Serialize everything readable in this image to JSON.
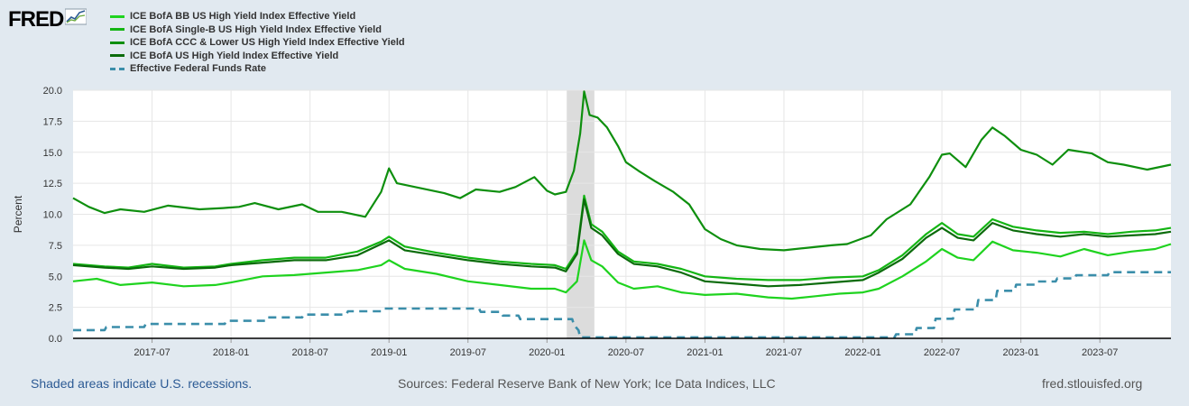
{
  "logo": {
    "text": "FRED"
  },
  "legend": [
    {
      "label": "ICE BofA BB US High Yield Index Effective Yield",
      "color": "#1fd31f",
      "style": "solid"
    },
    {
      "label": "ICE BofA Single-B US High Yield Index Effective Yield",
      "color": "#14b514",
      "style": "solid"
    },
    {
      "label": "ICE BofA CCC & Lower US High Yield Index Effective Yield",
      "color": "#0e8f0e",
      "style": "solid"
    },
    {
      "label": "ICE BofA US High Yield Index Effective Yield",
      "color": "#0b6b0b",
      "style": "solid"
    },
    {
      "label": "Effective Federal Funds Rate",
      "color": "#3b8eaa",
      "style": "dashed"
    }
  ],
  "footer": {
    "recessions": "Shaded areas indicate U.S. recessions.",
    "sources": "Sources: Federal Reserve Bank of New York; Ice Data Indices, LLC",
    "url": "fred.stlouisfed.org"
  },
  "chart_data": {
    "type": "line",
    "ylabel": "Percent",
    "xlabel": "",
    "ylim": [
      0,
      20
    ],
    "xlim": [
      2017.0,
      2023.95
    ],
    "yticks": [
      "0.0",
      "2.5",
      "5.0",
      "7.5",
      "10.0",
      "12.5",
      "15.0",
      "17.5",
      "20.0"
    ],
    "xticks": [
      {
        "label": "2017-07",
        "t": 2017.5
      },
      {
        "label": "2018-01",
        "t": 2018.0
      },
      {
        "label": "2018-07",
        "t": 2018.5
      },
      {
        "label": "2019-01",
        "t": 2019.0
      },
      {
        "label": "2019-07",
        "t": 2019.5
      },
      {
        "label": "2020-01",
        "t": 2020.0
      },
      {
        "label": "2020-07",
        "t": 2020.5
      },
      {
        "label": "2021-01",
        "t": 2021.0
      },
      {
        "label": "2021-07",
        "t": 2021.5
      },
      {
        "label": "2022-01",
        "t": 2022.0
      },
      {
        "label": "2022-07",
        "t": 2022.5
      },
      {
        "label": "2023-01",
        "t": 2023.0
      },
      {
        "label": "2023-07",
        "t": 2023.5
      }
    ],
    "grid": true,
    "recessions": [
      [
        2020.125,
        2020.3
      ]
    ],
    "series": [
      {
        "name": "ICE BofA CCC & Lower US High Yield Index Effective Yield",
        "color": "#0e8f0e",
        "dashed": false,
        "points": [
          [
            2017.0,
            11.3
          ],
          [
            2017.1,
            10.6
          ],
          [
            2017.2,
            10.1
          ],
          [
            2017.3,
            10.4
          ],
          [
            2017.45,
            10.2
          ],
          [
            2017.6,
            10.7
          ],
          [
            2017.8,
            10.4
          ],
          [
            2017.95,
            10.5
          ],
          [
            2018.05,
            10.6
          ],
          [
            2018.15,
            10.9
          ],
          [
            2018.3,
            10.4
          ],
          [
            2018.45,
            10.8
          ],
          [
            2018.55,
            10.2
          ],
          [
            2018.7,
            10.2
          ],
          [
            2018.85,
            9.8
          ],
          [
            2018.95,
            11.8
          ],
          [
            2019.0,
            13.7
          ],
          [
            2019.05,
            12.5
          ],
          [
            2019.2,
            12.1
          ],
          [
            2019.35,
            11.7
          ],
          [
            2019.45,
            11.3
          ],
          [
            2019.55,
            12.0
          ],
          [
            2019.7,
            11.8
          ],
          [
            2019.8,
            12.2
          ],
          [
            2019.92,
            13.0
          ],
          [
            2020.0,
            11.9
          ],
          [
            2020.05,
            11.6
          ],
          [
            2020.12,
            11.8
          ],
          [
            2020.17,
            13.5
          ],
          [
            2020.21,
            16.5
          ],
          [
            2020.235,
            19.9
          ],
          [
            2020.27,
            18.0
          ],
          [
            2020.32,
            17.8
          ],
          [
            2020.38,
            17.0
          ],
          [
            2020.45,
            15.5
          ],
          [
            2020.5,
            14.2
          ],
          [
            2020.58,
            13.5
          ],
          [
            2020.68,
            12.7
          ],
          [
            2020.8,
            11.8
          ],
          [
            2020.9,
            10.8
          ],
          [
            2021.0,
            8.8
          ],
          [
            2021.1,
            8.0
          ],
          [
            2021.2,
            7.5
          ],
          [
            2021.35,
            7.2
          ],
          [
            2021.5,
            7.1
          ],
          [
            2021.65,
            7.3
          ],
          [
            2021.8,
            7.5
          ],
          [
            2021.9,
            7.6
          ],
          [
            2022.05,
            8.3
          ],
          [
            2022.15,
            9.6
          ],
          [
            2022.3,
            10.8
          ],
          [
            2022.42,
            13.0
          ],
          [
            2022.5,
            14.8
          ],
          [
            2022.55,
            14.9
          ],
          [
            2022.65,
            13.8
          ],
          [
            2022.75,
            16.0
          ],
          [
            2022.82,
            17.0
          ],
          [
            2022.9,
            16.3
          ],
          [
            2023.0,
            15.2
          ],
          [
            2023.1,
            14.8
          ],
          [
            2023.2,
            14.0
          ],
          [
            2023.3,
            15.2
          ],
          [
            2023.45,
            14.9
          ],
          [
            2023.55,
            14.2
          ],
          [
            2023.65,
            14.0
          ],
          [
            2023.8,
            13.6
          ],
          [
            2023.95,
            14.0
          ]
        ]
      },
      {
        "name": "ICE BofA Single-B US High Yield Index Effective Yield",
        "color": "#14b514",
        "dashed": false,
        "points": [
          [
            2017.0,
            6.0
          ],
          [
            2017.2,
            5.8
          ],
          [
            2017.35,
            5.7
          ],
          [
            2017.5,
            6.0
          ],
          [
            2017.7,
            5.7
          ],
          [
            2017.9,
            5.8
          ],
          [
            2018.0,
            6.0
          ],
          [
            2018.2,
            6.3
          ],
          [
            2018.4,
            6.5
          ],
          [
            2018.6,
            6.5
          ],
          [
            2018.8,
            7.0
          ],
          [
            2018.95,
            7.8
          ],
          [
            2019.0,
            8.2
          ],
          [
            2019.1,
            7.4
          ],
          [
            2019.3,
            6.9
          ],
          [
            2019.5,
            6.5
          ],
          [
            2019.7,
            6.2
          ],
          [
            2019.9,
            6.0
          ],
          [
            2020.05,
            5.9
          ],
          [
            2020.12,
            5.6
          ],
          [
            2020.19,
            7.0
          ],
          [
            2020.235,
            11.5
          ],
          [
            2020.28,
            9.2
          ],
          [
            2020.35,
            8.6
          ],
          [
            2020.45,
            7.0
          ],
          [
            2020.55,
            6.2
          ],
          [
            2020.7,
            6.0
          ],
          [
            2020.85,
            5.6
          ],
          [
            2021.0,
            5.0
          ],
          [
            2021.2,
            4.8
          ],
          [
            2021.4,
            4.7
          ],
          [
            2021.6,
            4.7
          ],
          [
            2021.8,
            4.9
          ],
          [
            2022.0,
            5.0
          ],
          [
            2022.1,
            5.5
          ],
          [
            2022.25,
            6.7
          ],
          [
            2022.4,
            8.4
          ],
          [
            2022.5,
            9.3
          ],
          [
            2022.6,
            8.4
          ],
          [
            2022.7,
            8.2
          ],
          [
            2022.82,
            9.6
          ],
          [
            2022.95,
            9.0
          ],
          [
            2023.1,
            8.7
          ],
          [
            2023.25,
            8.5
          ],
          [
            2023.4,
            8.6
          ],
          [
            2023.55,
            8.4
          ],
          [
            2023.7,
            8.6
          ],
          [
            2023.85,
            8.7
          ],
          [
            2023.95,
            8.9
          ]
        ]
      },
      {
        "name": "ICE BofA US High Yield Index Effective Yield",
        "color": "#0b6b0b",
        "dashed": false,
        "points": [
          [
            2017.0,
            5.9
          ],
          [
            2017.2,
            5.7
          ],
          [
            2017.35,
            5.6
          ],
          [
            2017.5,
            5.8
          ],
          [
            2017.7,
            5.6
          ],
          [
            2017.9,
            5.7
          ],
          [
            2018.0,
            5.9
          ],
          [
            2018.2,
            6.1
          ],
          [
            2018.4,
            6.3
          ],
          [
            2018.6,
            6.3
          ],
          [
            2018.8,
            6.7
          ],
          [
            2018.95,
            7.6
          ],
          [
            2019.0,
            7.9
          ],
          [
            2019.1,
            7.1
          ],
          [
            2019.3,
            6.7
          ],
          [
            2019.5,
            6.3
          ],
          [
            2019.7,
            6.0
          ],
          [
            2019.9,
            5.8
          ],
          [
            2020.05,
            5.7
          ],
          [
            2020.12,
            5.4
          ],
          [
            2020.19,
            6.8
          ],
          [
            2020.235,
            11.2
          ],
          [
            2020.28,
            8.9
          ],
          [
            2020.35,
            8.3
          ],
          [
            2020.45,
            6.8
          ],
          [
            2020.55,
            6.0
          ],
          [
            2020.7,
            5.8
          ],
          [
            2020.85,
            5.3
          ],
          [
            2021.0,
            4.6
          ],
          [
            2021.2,
            4.4
          ],
          [
            2021.4,
            4.2
          ],
          [
            2021.6,
            4.3
          ],
          [
            2021.8,
            4.5
          ],
          [
            2022.0,
            4.7
          ],
          [
            2022.1,
            5.3
          ],
          [
            2022.25,
            6.4
          ],
          [
            2022.4,
            8.1
          ],
          [
            2022.5,
            8.9
          ],
          [
            2022.6,
            8.1
          ],
          [
            2022.7,
            7.9
          ],
          [
            2022.82,
            9.3
          ],
          [
            2022.95,
            8.7
          ],
          [
            2023.1,
            8.4
          ],
          [
            2023.25,
            8.2
          ],
          [
            2023.4,
            8.4
          ],
          [
            2023.55,
            8.2
          ],
          [
            2023.7,
            8.3
          ],
          [
            2023.85,
            8.4
          ],
          [
            2023.95,
            8.6
          ]
        ]
      },
      {
        "name": "ICE BofA BB US High Yield Index Effective Yield",
        "color": "#1fd31f",
        "dashed": false,
        "points": [
          [
            2017.0,
            4.6
          ],
          [
            2017.15,
            4.8
          ],
          [
            2017.3,
            4.3
          ],
          [
            2017.5,
            4.5
          ],
          [
            2017.7,
            4.2
          ],
          [
            2017.9,
            4.3
          ],
          [
            2018.0,
            4.5
          ],
          [
            2018.2,
            5.0
          ],
          [
            2018.4,
            5.1
          ],
          [
            2018.6,
            5.3
          ],
          [
            2018.8,
            5.5
          ],
          [
            2018.95,
            5.9
          ],
          [
            2019.0,
            6.3
          ],
          [
            2019.1,
            5.6
          ],
          [
            2019.3,
            5.2
          ],
          [
            2019.5,
            4.6
          ],
          [
            2019.7,
            4.3
          ],
          [
            2019.9,
            4.0
          ],
          [
            2020.05,
            4.0
          ],
          [
            2020.12,
            3.7
          ],
          [
            2020.19,
            4.6
          ],
          [
            2020.235,
            7.9
          ],
          [
            2020.28,
            6.3
          ],
          [
            2020.35,
            5.8
          ],
          [
            2020.45,
            4.5
          ],
          [
            2020.55,
            4.0
          ],
          [
            2020.7,
            4.2
          ],
          [
            2020.85,
            3.7
          ],
          [
            2021.0,
            3.5
          ],
          [
            2021.2,
            3.6
          ],
          [
            2021.4,
            3.3
          ],
          [
            2021.55,
            3.2
          ],
          [
            2021.7,
            3.4
          ],
          [
            2021.85,
            3.6
          ],
          [
            2022.0,
            3.7
          ],
          [
            2022.1,
            4.0
          ],
          [
            2022.25,
            5.0
          ],
          [
            2022.4,
            6.2
          ],
          [
            2022.5,
            7.2
          ],
          [
            2022.6,
            6.5
          ],
          [
            2022.7,
            6.3
          ],
          [
            2022.82,
            7.8
          ],
          [
            2022.95,
            7.1
          ],
          [
            2023.1,
            6.9
          ],
          [
            2023.25,
            6.6
          ],
          [
            2023.4,
            7.2
          ],
          [
            2023.55,
            6.7
          ],
          [
            2023.7,
            7.0
          ],
          [
            2023.85,
            7.2
          ],
          [
            2023.95,
            7.6
          ]
        ]
      },
      {
        "name": "Effective Federal Funds Rate",
        "color": "#3b8eaa",
        "dashed": true,
        "points": [
          [
            2017.0,
            0.66
          ],
          [
            2017.2,
            0.66
          ],
          [
            2017.21,
            0.91
          ],
          [
            2017.45,
            0.91
          ],
          [
            2017.46,
            1.16
          ],
          [
            2017.96,
            1.16
          ],
          [
            2017.97,
            1.41
          ],
          [
            2018.22,
            1.41
          ],
          [
            2018.23,
            1.69
          ],
          [
            2018.45,
            1.69
          ],
          [
            2018.46,
            1.91
          ],
          [
            2018.73,
            1.91
          ],
          [
            2018.74,
            2.18
          ],
          [
            2018.96,
            2.18
          ],
          [
            2018.97,
            2.4
          ],
          [
            2019.57,
            2.4
          ],
          [
            2019.58,
            2.13
          ],
          [
            2019.71,
            2.13
          ],
          [
            2019.72,
            1.83
          ],
          [
            2019.82,
            1.83
          ],
          [
            2019.83,
            1.55
          ],
          [
            2020.16,
            1.55
          ],
          [
            2020.17,
            1.1
          ],
          [
            2020.2,
            0.65
          ],
          [
            2020.21,
            0.08
          ],
          [
            2022.2,
            0.08
          ],
          [
            2022.21,
            0.33
          ],
          [
            2022.33,
            0.33
          ],
          [
            2022.34,
            0.83
          ],
          [
            2022.45,
            0.83
          ],
          [
            2022.46,
            1.58
          ],
          [
            2022.57,
            1.58
          ],
          [
            2022.58,
            2.33
          ],
          [
            2022.72,
            2.33
          ],
          [
            2022.73,
            3.08
          ],
          [
            2022.84,
            3.08
          ],
          [
            2022.85,
            3.83
          ],
          [
            2022.96,
            3.83
          ],
          [
            2022.97,
            4.33
          ],
          [
            2023.09,
            4.33
          ],
          [
            2023.1,
            4.58
          ],
          [
            2023.22,
            4.58
          ],
          [
            2023.23,
            4.83
          ],
          [
            2023.34,
            4.83
          ],
          [
            2023.35,
            5.08
          ],
          [
            2023.55,
            5.08
          ],
          [
            2023.56,
            5.33
          ],
          [
            2023.95,
            5.33
          ]
        ]
      }
    ]
  }
}
